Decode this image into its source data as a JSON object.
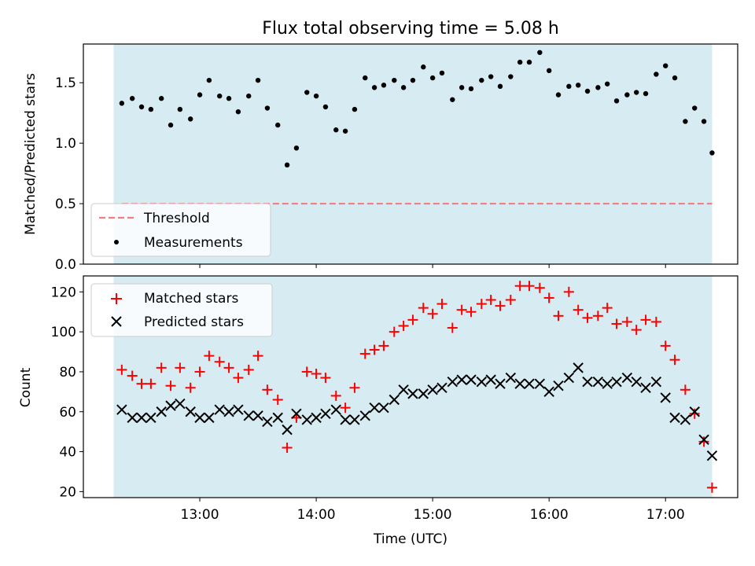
{
  "title": "Flux total observing time = 5.08 h",
  "colors": {
    "shade": "#add8e6",
    "threshold": "#f08080",
    "measurement": "#000000",
    "matched": "#ff0000",
    "predicted": "#000000"
  },
  "chart_data": [
    {
      "type": "scatter",
      "ylabel": "Matched/Predicted stars",
      "xlabel": "",
      "ylim": [
        0,
        1.82
      ],
      "yticks": [
        {
          "v": 0.0,
          "label": "0.0"
        },
        {
          "v": 0.5,
          "label": "0.5"
        },
        {
          "v": 1.0,
          "label": "1.0"
        },
        {
          "v": 1.5,
          "label": "1.5"
        }
      ],
      "threshold": 0.5,
      "legend_position": "lower-left",
      "legend": {
        "threshold_label": "Threshold",
        "measurements_label": "Measurements"
      },
      "x": [
        12.33,
        12.42,
        12.5,
        12.58,
        12.67,
        12.75,
        12.83,
        12.92,
        13.0,
        13.08,
        13.17,
        13.25,
        13.33,
        13.42,
        13.5,
        13.58,
        13.67,
        13.75,
        13.83,
        13.92,
        14.0,
        14.08,
        14.17,
        14.25,
        14.33,
        14.42,
        14.5,
        14.58,
        14.67,
        14.75,
        14.83,
        14.92,
        15.0,
        15.08,
        15.17,
        15.25,
        15.33,
        15.42,
        15.5,
        15.58,
        15.67,
        15.75,
        15.83,
        15.92,
        16.0,
        16.08,
        16.17,
        16.25,
        16.33,
        16.42,
        16.5,
        16.58,
        16.67,
        16.75,
        16.83,
        16.92,
        17.0,
        17.08,
        17.17,
        17.25,
        17.33,
        17.4
      ],
      "values": [
        1.33,
        1.37,
        1.3,
        1.28,
        1.37,
        1.15,
        1.28,
        1.2,
        1.4,
        1.52,
        1.39,
        1.37,
        1.26,
        1.39,
        1.52,
        1.29,
        1.15,
        0.82,
        0.96,
        1.42,
        1.39,
        1.3,
        1.11,
        1.1,
        1.28,
        1.54,
        1.46,
        1.48,
        1.52,
        1.46,
        1.52,
        1.63,
        1.54,
        1.58,
        1.36,
        1.46,
        1.45,
        1.52,
        1.55,
        1.47,
        1.55,
        1.67,
        1.67,
        1.75,
        1.6,
        1.4,
        1.47,
        1.48,
        1.43,
        1.46,
        1.49,
        1.35,
        1.4,
        1.42,
        1.41,
        1.57,
        1.64,
        1.54,
        1.18,
        1.29,
        1.18,
        0.92
      ]
    },
    {
      "type": "scatter",
      "ylabel": "Count",
      "xlabel": "Time (UTC)",
      "ylim": [
        17,
        128
      ],
      "yticks": [
        {
          "v": 20,
          "label": "20"
        },
        {
          "v": 40,
          "label": "40"
        },
        {
          "v": 60,
          "label": "60"
        },
        {
          "v": 80,
          "label": "80"
        },
        {
          "v": 100,
          "label": "100"
        },
        {
          "v": 120,
          "label": "120"
        }
      ],
      "xticks": [
        {
          "v": 13,
          "label": "13:00"
        },
        {
          "v": 14,
          "label": "14:00"
        },
        {
          "v": 15,
          "label": "15:00"
        },
        {
          "v": 16,
          "label": "16:00"
        },
        {
          "v": 17,
          "label": "17:00"
        }
      ],
      "xlim": [
        12.0,
        17.62
      ],
      "shade_range": [
        12.26,
        17.4
      ],
      "legend_position": "upper-left",
      "x": [
        12.33,
        12.42,
        12.5,
        12.58,
        12.67,
        12.75,
        12.83,
        12.92,
        13.0,
        13.08,
        13.17,
        13.25,
        13.33,
        13.42,
        13.5,
        13.58,
        13.67,
        13.75,
        13.83,
        13.92,
        14.0,
        14.08,
        14.17,
        14.25,
        14.33,
        14.42,
        14.5,
        14.58,
        14.67,
        14.75,
        14.83,
        14.92,
        15.0,
        15.08,
        15.17,
        15.25,
        15.33,
        15.42,
        15.5,
        15.58,
        15.67,
        15.75,
        15.83,
        15.92,
        16.0,
        16.08,
        16.17,
        16.25,
        16.33,
        16.42,
        16.5,
        16.58,
        16.67,
        16.75,
        16.83,
        16.92,
        17.0,
        17.08,
        17.17,
        17.25,
        17.33,
        17.4
      ],
      "series": [
        {
          "name": "Matched stars",
          "marker": "plus",
          "values": [
            81,
            78,
            74,
            74,
            82,
            73,
            82,
            72,
            80,
            88,
            85,
            82,
            77,
            81,
            88,
            71,
            66,
            42,
            57,
            80,
            79,
            77,
            68,
            62,
            72,
            89,
            91,
            93,
            100,
            103,
            106,
            112,
            109,
            114,
            102,
            111,
            110,
            114,
            116,
            113,
            116,
            123,
            123,
            122,
            117,
            108,
            120,
            111,
            107,
            108,
            112,
            104,
            105,
            101,
            106,
            105,
            93,
            86,
            71,
            59,
            45,
            22
          ]
        },
        {
          "name": "Predicted stars",
          "marker": "x",
          "values": [
            61,
            57,
            57,
            57,
            60,
            63,
            64,
            60,
            57,
            57,
            61,
            60,
            61,
            58,
            58,
            55,
            57,
            51,
            59,
            56,
            57,
            59,
            61,
            56,
            56,
            58,
            62,
            62,
            66,
            71,
            69,
            69,
            71,
            72,
            75,
            76,
            76,
            75,
            76,
            74,
            77,
            74,
            74,
            74,
            70,
            73,
            77,
            82,
            75,
            75,
            74,
            75,
            77,
            75,
            72,
            75,
            67,
            57,
            56,
            60,
            46,
            38
          ]
        }
      ]
    }
  ]
}
